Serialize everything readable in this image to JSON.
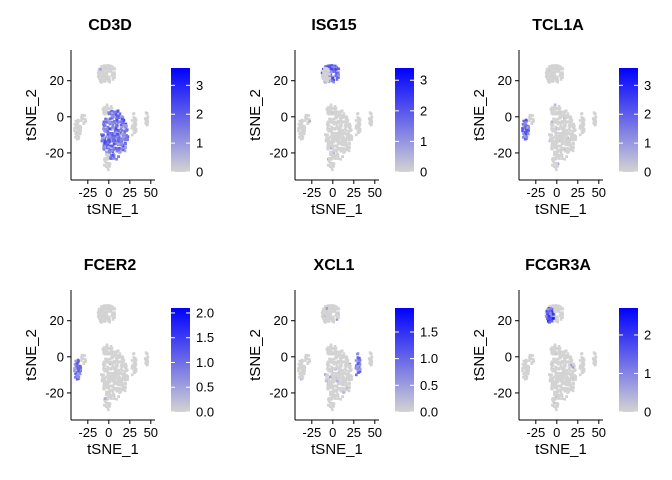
{
  "figure": {
    "gradient_low": "#d3d3d3",
    "gradient_high": "#0000ff",
    "point_base_color": "#d3d3d3"
  },
  "chart_data": [
    {
      "type": "scatter",
      "title": "CD3D",
      "xlabel": "tSNE_1",
      "ylabel": "tSNE_2",
      "xlim": [
        -45,
        55
      ],
      "ylim": [
        -35,
        37
      ],
      "xticks": [
        "-25",
        "0",
        "25",
        "50"
      ],
      "yticks": [
        "20",
        "0",
        "-20"
      ],
      "colorbar": {
        "min": 0,
        "max": 3.6,
        "ticks": [
          "3",
          "2",
          "1",
          "0"
        ]
      },
      "highlight": {
        "cluster": "right_big",
        "level": 0.55
      }
    },
    {
      "type": "scatter",
      "title": "ISG15",
      "xlabel": "tSNE_1",
      "ylabel": "tSNE_2",
      "xlim": [
        -45,
        55
      ],
      "ylim": [
        -35,
        37
      ],
      "xticks": [
        "-25",
        "0",
        "25",
        "50"
      ],
      "yticks": [
        "20",
        "0",
        "-20"
      ],
      "colorbar": {
        "min": 0,
        "max": 3.4,
        "ticks": [
          "3",
          "2",
          "1",
          "0"
        ]
      },
      "highlight": {
        "cluster": "top",
        "level": 0.6
      }
    },
    {
      "type": "scatter",
      "title": "TCL1A",
      "xlabel": "tSNE_1",
      "ylabel": "tSNE_2",
      "xlim": [
        -45,
        55
      ],
      "ylim": [
        -35,
        37
      ],
      "xticks": [
        "-25",
        "0",
        "25",
        "50"
      ],
      "yticks": [
        "20",
        "0",
        "-20"
      ],
      "colorbar": {
        "min": 0,
        "max": 3.6,
        "ticks": [
          "3",
          "2",
          "1",
          "0"
        ]
      },
      "highlight": {
        "cluster": "left",
        "level": 0.55
      }
    },
    {
      "type": "scatter",
      "title": "FCER2",
      "xlabel": "tSNE_1",
      "ylabel": "tSNE_2",
      "xlim": [
        -45,
        55
      ],
      "ylim": [
        -35,
        37
      ],
      "xticks": [
        "-25",
        "0",
        "25",
        "50"
      ],
      "yticks": [
        "20",
        "0",
        "-20"
      ],
      "colorbar": {
        "min": 0,
        "max": 2.1,
        "ticks": [
          "2.0",
          "1.5",
          "1.0",
          "0.5",
          "0.0"
        ]
      },
      "highlight": {
        "cluster": "left",
        "level": 0.5
      }
    },
    {
      "type": "scatter",
      "title": "XCL1",
      "xlabel": "tSNE_1",
      "ylabel": "tSNE_2",
      "xlim": [
        -45,
        55
      ],
      "ylim": [
        -35,
        37
      ],
      "xticks": [
        "-25",
        "0",
        "25",
        "50"
      ],
      "yticks": [
        "20",
        "0",
        "-20"
      ],
      "colorbar": {
        "min": 0,
        "max": 1.95,
        "ticks": [
          "1.5",
          "1.0",
          "0.5",
          "0.0"
        ]
      },
      "highlight": {
        "cluster": "right_small",
        "level": 0.55
      }
    },
    {
      "type": "scatter",
      "title": "FCGR3A",
      "xlabel": "tSNE_1",
      "ylabel": "tSNE_2",
      "xlim": [
        -45,
        55
      ],
      "ylim": [
        -35,
        37
      ],
      "xticks": [
        "-25",
        "0",
        "25",
        "50"
      ],
      "yticks": [
        "20",
        "0",
        "-20"
      ],
      "colorbar": {
        "min": 0,
        "max": 2.7,
        "ticks": [
          "2",
          "1",
          "0"
        ]
      },
      "highlight": {
        "cluster": "top_left",
        "level": 0.75
      }
    }
  ]
}
